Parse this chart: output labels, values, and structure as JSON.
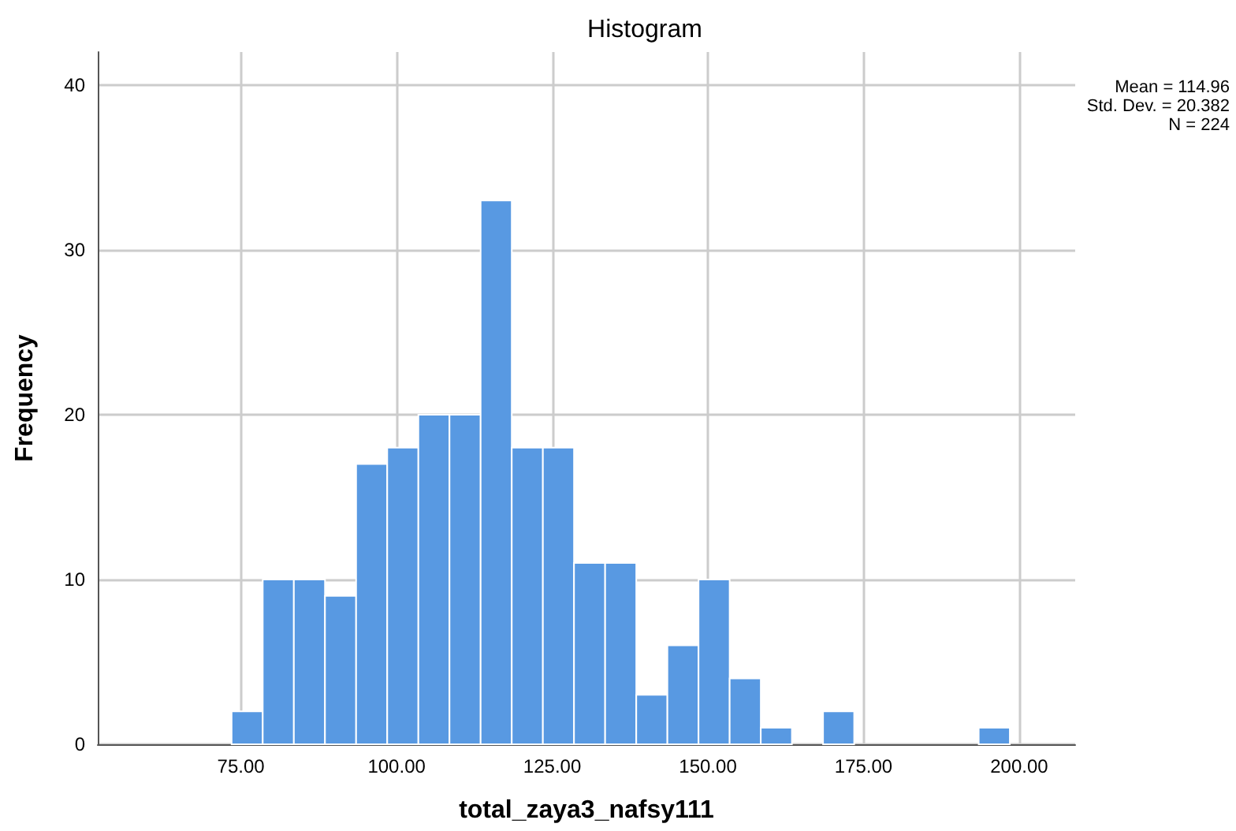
{
  "chart_data": {
    "type": "histogram",
    "title": "Histogram",
    "xlabel": "total_zaya3_nafsy111",
    "ylabel": "Frequency",
    "bins": [
      73.5,
      78.5,
      83.5,
      88.5,
      93.5,
      98.5,
      103.5,
      108.5,
      113.5,
      118.5,
      123.5,
      128.5,
      133.5,
      138.5,
      143.5,
      148.5,
      153.5,
      158.5,
      163.5,
      168.5,
      173.5,
      178.5,
      183.5,
      188.5,
      193.5,
      198.5
    ],
    "values": [
      2,
      10,
      10,
      9,
      17,
      18,
      20,
      20,
      33,
      18,
      18,
      11,
      11,
      3,
      6,
      10,
      4,
      1,
      0,
      2,
      0,
      0,
      0,
      0,
      1
    ],
    "color": "#5899e2",
    "xlim": [
      52,
      209
    ],
    "xticks": [
      {
        "value": 75,
        "label": "75.00"
      },
      {
        "value": 100,
        "label": "100.00"
      },
      {
        "value": 125,
        "label": "125.00"
      },
      {
        "value": 150,
        "label": "150.00"
      },
      {
        "value": 175,
        "label": "175.00"
      },
      {
        "value": 200,
        "label": "200.00"
      }
    ],
    "ylim": [
      0,
      42
    ],
    "yticks": [
      0,
      10,
      20,
      30,
      40
    ],
    "grid": true,
    "annotations": [
      "Mean = 114.96",
      "Std. Dev. = 20.382",
      "N = 224"
    ]
  }
}
